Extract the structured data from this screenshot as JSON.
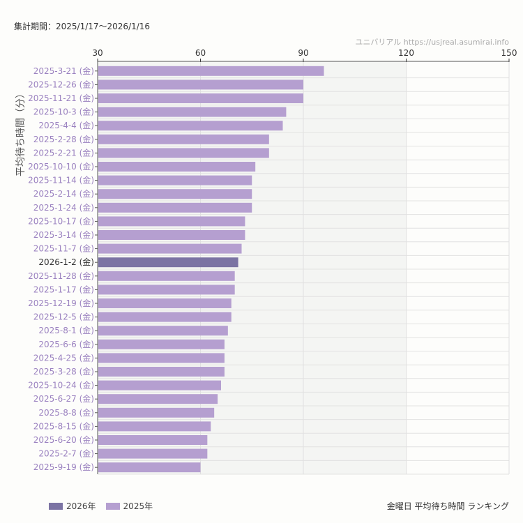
{
  "period": "集計期間：2025/1/17〜2026/1/16",
  "site": "ユニバリアル  https://usjreal.asumirai.info",
  "chart_data": {
    "type": "bar",
    "orientation": "horizontal",
    "title": "金曜日 平均待ち時間 ランキング",
    "ylabel": "平均待ち時間（分）",
    "xlim": [
      30,
      150
    ],
    "xticks": [
      30,
      60,
      90,
      120,
      150
    ],
    "grid": true,
    "legend_position": "bottom-left",
    "series": [
      {
        "name": "2026年",
        "color": "#7b73a3"
      },
      {
        "name": "2025年",
        "color": "#b59fd0"
      }
    ],
    "categories": [
      "2025-3-21 (金)",
      "2025-12-26 (金)",
      "2025-11-21 (金)",
      "2025-10-3 (金)",
      "2025-4-4 (金)",
      "2025-2-28 (金)",
      "2025-2-21 (金)",
      "2025-10-10 (金)",
      "2025-11-14 (金)",
      "2025-2-14 (金)",
      "2025-1-24 (金)",
      "2025-10-17 (金)",
      "2025-3-14 (金)",
      "2025-11-7 (金)",
      "2026-1-2 (金)",
      "2025-11-28 (金)",
      "2025-1-17 (金)",
      "2025-12-19 (金)",
      "2025-12-5 (金)",
      "2025-8-1 (金)",
      "2025-6-6 (金)",
      "2025-4-25 (金)",
      "2025-3-28 (金)",
      "2025-10-24 (金)",
      "2025-6-27 (金)",
      "2025-8-8 (金)",
      "2025-8-15 (金)",
      "2025-6-20 (金)",
      "2025-2-7 (金)",
      "2025-9-19 (金)"
    ],
    "values": [
      96,
      90,
      90,
      85,
      84,
      80,
      80,
      76,
      75,
      75,
      75,
      73,
      73,
      72,
      71,
      70,
      70,
      69,
      69,
      68,
      67,
      67,
      67,
      66,
      65,
      64,
      63,
      62,
      62,
      60
    ],
    "year_of_bar": [
      "2025",
      "2025",
      "2025",
      "2025",
      "2025",
      "2025",
      "2025",
      "2025",
      "2025",
      "2025",
      "2025",
      "2025",
      "2025",
      "2025",
      "2026",
      "2025",
      "2025",
      "2025",
      "2025",
      "2025",
      "2025",
      "2025",
      "2025",
      "2025",
      "2025",
      "2025",
      "2025",
      "2025",
      "2025",
      "2025"
    ]
  }
}
